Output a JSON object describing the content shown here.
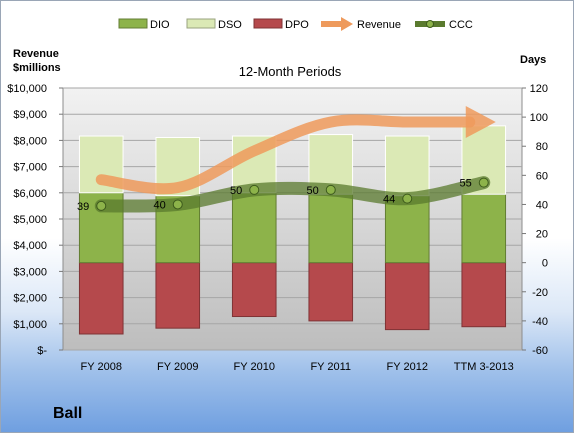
{
  "company": "Ball",
  "chart_data": {
    "type": "bar",
    "title": "12-Month Periods",
    "ylabel_left": [
      "Revenue",
      "$millions"
    ],
    "ylabel_right": "Days",
    "categories": [
      "FY 2008",
      "FY 2009",
      "FY 2010",
      "FY 2011",
      "FY 2012",
      "TTM 3-2013"
    ],
    "left_axis": {
      "ylim": [
        0,
        10000
      ],
      "ticks": [
        "$-",
        "$1,000",
        "$2,000",
        "$3,000",
        "$4,000",
        "$5,000",
        "$6,000",
        "$7,000",
        "$8,000",
        "$9,000",
        "$10,000"
      ]
    },
    "right_axis": {
      "ylim": [
        -60,
        120
      ],
      "ticks": [
        "-60",
        "-40",
        "-20",
        "0",
        "20",
        "40",
        "60",
        "80",
        "100",
        "120"
      ]
    },
    "series": [
      {
        "name": "DIO",
        "kind": "stacked-bar",
        "axis": "right",
        "color": "#8db34a",
        "values": [
          48,
          46,
          48,
          47,
          46,
          47
        ]
      },
      {
        "name": "DSO",
        "kind": "stacked-bar",
        "axis": "right",
        "color": "#dbe9b5",
        "values": [
          39,
          40,
          39,
          41,
          41,
          47
        ]
      },
      {
        "name": "DPO",
        "kind": "negative-bar",
        "axis": "right",
        "color": "#b5494c",
        "values": [
          -49,
          -45,
          -37,
          -40,
          -46,
          -44
        ]
      },
      {
        "name": "Revenue",
        "kind": "arrow-line",
        "axis": "left",
        "color": "#ee9a5c",
        "values": [
          6500,
          6200,
          7600,
          8700,
          8700,
          8700
        ]
      },
      {
        "name": "CCC",
        "kind": "line",
        "axis": "right",
        "color": "#5a7a2e",
        "values": [
          39,
          40,
          50,
          50,
          44,
          55
        ],
        "labels": [
          "39",
          "40",
          "50",
          "50",
          "44",
          "55"
        ]
      }
    ],
    "grid": true,
    "legend": "top"
  }
}
